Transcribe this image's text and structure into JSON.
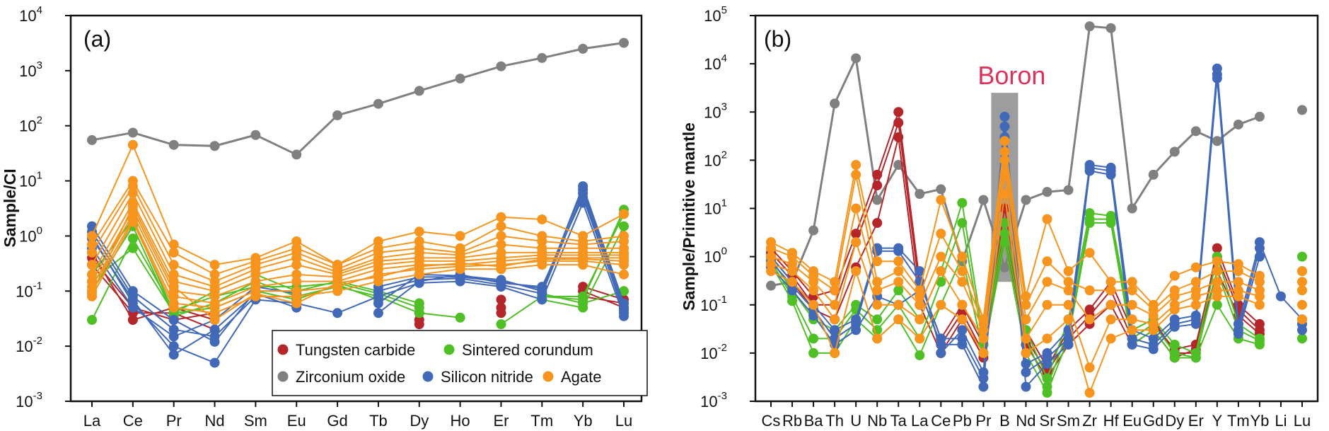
{
  "chart_data": [
    {
      "type": "line",
      "panel_label": "(a)",
      "ylabel": "Sample/CI",
      "yscale": "log",
      "ylim": [
        0.001,
        10000
      ],
      "ytick_exponents": [
        "-3",
        "-2",
        "-1",
        "0",
        "1",
        "2",
        "3",
        "4"
      ],
      "categories": [
        "La",
        "Ce",
        "Pr",
        "Nd",
        "Sm",
        "Eu",
        "Gd",
        "Tb",
        "Dy",
        "Ho",
        "Er",
        "Tm",
        "Yb",
        "Lu"
      ],
      "legend": {
        "position": "bottom-right",
        "entries": [
          {
            "label": "Tungsten carbide",
            "color": "#b5262b"
          },
          {
            "label": "Sintered corundum",
            "color": "#4fbf26"
          },
          {
            "label": "Zirconium oxide",
            "color": "#808080"
          },
          {
            "label": "Silicon nitride",
            "color": "#4169b8"
          },
          {
            "label": "Agate",
            "color": "#f7941d"
          }
        ]
      },
      "series": [
        {
          "name": "Zirconium oxide",
          "color": "#808080",
          "lines": [
            [
              55,
              75,
              45,
              43,
              68,
              30,
              155,
              250,
              430,
              720,
              1200,
              1700,
              2500,
              3200
            ]
          ]
        },
        {
          "name": "Silicon nitride",
          "color": "#4169b8",
          "lines": [
            [
              1.5,
              0.1,
              0.03,
              0.012,
              0.1,
              0.1,
              null,
              0.12,
              0.18,
              0.18,
              0.15,
              0.11,
              7,
              0.05
            ],
            [
              1.2,
              0.08,
              0.02,
              0.015,
              0.08,
              0.08,
              null,
              0.1,
              0.16,
              0.17,
              0.13,
              0.09,
              6,
              0.04
            ],
            [
              1.0,
              0.06,
              0.01,
              0.005,
              0.07,
              0.06,
              0.04,
              0.08,
              0.14,
              0.15,
              0.12,
              0.07,
              4,
              0.035
            ],
            [
              0.9,
              0.07,
              0.007,
              0.02,
              0.09,
              0.05,
              null,
              0.06,
              0.2,
              0.19,
              0.16,
              0.1,
              8,
              0.06
            ],
            [
              0.6,
              0.05,
              0.015,
              0.03,
              0.12,
              0.09,
              null,
              0.04,
              0.15,
              0.2,
              0.14,
              0.12,
              5,
              0.045
            ]
          ]
        },
        {
          "name": "Tungsten carbide",
          "color": "#b5262b",
          "lines": [
            [
              0.5,
              0.03,
              0.05,
              0.03,
              null,
              null,
              null,
              null,
              0.03,
              null,
              0.07,
              null,
              0.1,
              0.05
            ],
            [
              0.3,
              0.04,
              0.04,
              0.02,
              null,
              null,
              null,
              null,
              0.025,
              null,
              0.05,
              null,
              0.08,
              0.06
            ],
            [
              0.4,
              0.05,
              0.03,
              0.04,
              null,
              null,
              null,
              null,
              0.04,
              null,
              0.04,
              null,
              0.12,
              0.07
            ]
          ]
        },
        {
          "name": "Sintered corundum",
          "color": "#4fbf26",
          "lines": [
            [
              0.2,
              2.0,
              0.04,
              0.1,
              0.2,
              0.1,
              0.15,
              0.1,
              0.06,
              null,
              0.025,
              0.08,
              0.07,
              3
            ],
            [
              0.1,
              1.5,
              0.035,
              0.06,
              0.15,
              0.08,
              0.12,
              0.08,
              0.04,
              0.033,
              null,
              0.07,
              0.05,
              1.5
            ],
            [
              0.03,
              0.9,
              0.045,
              0.08,
              0.12,
              0.12,
              0.14,
              0.09,
              0.05,
              null,
              null,
              0.09,
              0.06,
              0.1
            ],
            [
              0.15,
              0.6,
              0.04,
              0.05,
              0.1,
              0.07,
              0.13,
              0.07,
              null,
              null,
              null,
              0.08,
              0.08,
              2.5
            ]
          ]
        },
        {
          "name": "Agate",
          "color": "#f7941d",
          "lines": [
            [
              1.0,
              45,
              0.7,
              0.3,
              0.4,
              0.8,
              0.3,
              0.8,
              1.2,
              1.0,
              2.2,
              2.0,
              1.0,
              2.5
            ],
            [
              0.7,
              10,
              0.5,
              0.2,
              0.35,
              0.6,
              0.3,
              0.6,
              0.8,
              0.6,
              1.5,
              1.0,
              0.8,
              1.0
            ],
            [
              0.5,
              8,
              0.3,
              0.15,
              0.3,
              0.5,
              0.25,
              0.5,
              0.6,
              0.5,
              1.0,
              0.8,
              0.7,
              0.8
            ],
            [
              0.3,
              6,
              0.2,
              0.12,
              0.25,
              0.4,
              0.22,
              0.4,
              0.5,
              0.45,
              0.7,
              0.6,
              0.6,
              0.6
            ],
            [
              0.2,
              4,
              0.15,
              0.1,
              0.2,
              0.3,
              0.2,
              0.35,
              0.4,
              0.4,
              0.5,
              0.5,
              0.5,
              0.5
            ],
            [
              0.15,
              3,
              0.1,
              0.08,
              0.15,
              0.2,
              0.18,
              0.3,
              0.35,
              0.35,
              0.4,
              0.45,
              0.45,
              0.45
            ],
            [
              0.12,
              2.5,
              0.08,
              0.06,
              0.12,
              0.15,
              0.15,
              0.25,
              0.3,
              0.3,
              0.35,
              0.4,
              0.4,
              0.4
            ],
            [
              0.1,
              2,
              0.06,
              0.05,
              0.1,
              0.1,
              0.12,
              0.2,
              0.25,
              0.28,
              0.3,
              0.35,
              0.35,
              0.3
            ],
            [
              0.08,
              1.8,
              0.05,
              0.04,
              0.08,
              0.08,
              0.1,
              0.15,
              0.2,
              0.25,
              0.25,
              0.3,
              0.3,
              0.2
            ],
            [
              0.09,
              3.5,
              0.12,
              0.03,
              0.09,
              0.06,
              0.14,
              0.18,
              0.28,
              0.32,
              0.28,
              0.38,
              0.38,
              0.35
            ]
          ]
        }
      ]
    },
    {
      "type": "line",
      "panel_label": "(b)",
      "ylabel": "Sample/Primitive mantle",
      "yscale": "log",
      "ylim": [
        0.001,
        100000
      ],
      "ytick_exponents": [
        "-3",
        "-2",
        "-1",
        "0",
        "1",
        "2",
        "3",
        "4",
        "5"
      ],
      "categories": [
        "Cs",
        "Rb",
        "Ba",
        "Th",
        "U",
        "Nb",
        "Ta",
        "La",
        "Ce",
        "Pb",
        "Pr",
        "B",
        "Nd",
        "Sr",
        "Sm",
        "Zr",
        "Hf",
        "Eu",
        "Gd",
        "Dy",
        "Er",
        "Y",
        "Tm",
        "Yb",
        "Li",
        "Lu"
      ],
      "annotation": {
        "text": "Boron",
        "color": "#e0315a",
        "category": "B",
        "band": [
          0.3,
          2500
        ]
      },
      "series": [
        {
          "name": "Zirconium oxide",
          "color": "#808080",
          "lines": [
            [
              0.25,
              0.3,
              3.5,
              1500,
              13000,
              15,
              80,
              20,
              25,
              0.8,
              15,
              0.6,
              15,
              22,
              24,
              60000,
              55000,
              10,
              50,
              150,
              400,
              250,
              550,
              800,
              null,
              1100
            ]
          ]
        },
        {
          "name": "Silicon nitride",
          "color": "#4169b8",
          "lines": [
            [
              1.0,
              0.3,
              0.1,
              0.03,
              0.05,
              1.5,
              1.5,
              0.5,
              0.01,
              0.03,
              0.004,
              800,
              0.006,
              0.01,
              0.03,
              80,
              70,
              0.03,
              0.02,
              0.05,
              0.06,
              8000,
              0.04,
              2.0,
              0.15,
              0.05
            ],
            [
              0.8,
              0.25,
              0.08,
              0.02,
              0.04,
              1.3,
              1.3,
              0.3,
              0.02,
              0.02,
              0.003,
              500,
              0.004,
              0.008,
              0.02,
              70,
              60,
              0.02,
              0.015,
              0.04,
              0.05,
              6000,
              0.03,
              1.5,
              null,
              0.04
            ],
            [
              0.6,
              0.2,
              0.06,
              0.015,
              0.03,
              0.15,
              0.1,
              0.2,
              0.015,
              0.015,
              0.002,
              300,
              0.002,
              0.006,
              0.015,
              60,
              50,
              0.015,
              0.012,
              0.035,
              0.04,
              5000,
              0.025,
              1.0,
              null,
              0.03
            ]
          ]
        },
        {
          "name": "Tungsten carbide",
          "color": "#b5262b",
          "lines": [
            [
              1.5,
              0.5,
              0.15,
              0.2,
              3,
              50,
              1000,
              0.3,
              0.02,
              0.1,
              0.015,
              10,
              0.03,
              0.005,
              0.03,
              0.08,
              0.3,
              0.03,
              0.05,
              0.01,
              0.01,
              1.5,
              0.1,
              0.04,
              null,
              null
            ],
            [
              1.2,
              0.4,
              0.1,
              0.1,
              2,
              30,
              600,
              0.2,
              0.015,
              0.07,
              0.01,
              5,
              0.02,
              0.004,
              0.02,
              0.06,
              0.2,
              0.02,
              0.04,
              0.012,
              0.015,
              1.0,
              0.08,
              0.03,
              null,
              null
            ],
            [
              1.0,
              0.3,
              0.08,
              0.05,
              0.6,
              5,
              300,
              0.1,
              0.01,
              0.05,
              0.008,
              3,
              0.015,
              0.003,
              0.015,
              0.04,
              0.1,
              0.015,
              0.03,
              0.008,
              0.012,
              0.5,
              0.06,
              0.025,
              null,
              null
            ]
          ]
        },
        {
          "name": "Sintered corundum",
          "color": "#4fbf26",
          "lines": [
            [
              0.9,
              0.2,
              0.05,
              0.03,
              0.1,
              0.05,
              0.2,
              0.05,
              0.5,
              13,
              0.02,
              5,
              0.03,
              0.003,
              0.05,
              8,
              7,
              0.03,
              0.05,
              0.015,
              0.01,
              1.0,
              0.04,
              0.02,
              null,
              1.0
            ],
            [
              0.8,
              0.15,
              0.02,
              0.02,
              0.08,
              0.03,
              0.1,
              0.02,
              0.3,
              5,
              0.015,
              3,
              0.02,
              0.002,
              0.03,
              6,
              6,
              0.02,
              0.04,
              0.01,
              0.008,
              0.5,
              0.03,
              0.018,
              null,
              0.5
            ],
            [
              0.7,
              0.12,
              0.01,
              0.01,
              0.05,
              0.02,
              0.05,
              0.009,
              0.1,
              1,
              0.01,
              2,
              0.01,
              0.0015,
              0.02,
              5,
              5,
              0.015,
              0.03,
              0.008,
              0.008,
              0.1,
              0.02,
              0.015,
              null,
              0.02
            ]
          ]
        },
        {
          "name": "Agate",
          "color": "#f7941d",
          "lines": [
            [
              2.0,
              1.2,
              0.5,
              0.3,
              80,
              0.8,
              0.8,
              0.2,
              15,
              1.0,
              0.05,
              250,
              0.15,
              6,
              0.5,
              1.2,
              0.3,
              0.3,
              0.1,
              0.4,
              0.6,
              0.8,
              0.7,
              0.4,
              null,
              0.5
            ],
            [
              1.5,
              1.0,
              0.4,
              0.2,
              50,
              0.3,
              0.5,
              0.15,
              3,
              0.5,
              0.04,
              150,
              0.1,
              0.8,
              0.3,
              0.2,
              0.2,
              0.2,
              0.08,
              0.2,
              0.3,
              0.5,
              0.5,
              0.3,
              null,
              0.3
            ],
            [
              1.0,
              0.7,
              0.3,
              0.1,
              10,
              0.2,
              0.3,
              0.1,
              1,
              0.3,
              0.03,
              100,
              0.05,
              0.3,
              0.2,
              0.05,
              0.1,
              0.1,
              0.06,
              0.15,
              0.2,
              0.3,
              0.3,
              0.2,
              null,
              0.2
            ],
            [
              0.7,
              0.5,
              0.2,
              0.05,
              2,
              0.1,
              0.1,
              0.05,
              0.5,
              0.1,
              0.02,
              50,
              0.02,
              0.1,
              0.1,
              0.005,
              0.05,
              0.05,
              0.04,
              0.1,
              0.15,
              0.2,
              0.2,
              0.15,
              null,
              0.1
            ],
            [
              0.5,
              0.3,
              0.1,
              0.01,
              0.5,
              0.02,
              0.05,
              0.02,
              0.1,
              0.05,
              0.01,
              20,
              0.01,
              0.02,
              0.05,
              0.0015,
              0.02,
              0.03,
              0.03,
              0.08,
              0.1,
              0.15,
              0.15,
              0.1,
              null,
              0.05
            ]
          ]
        }
      ]
    }
  ]
}
